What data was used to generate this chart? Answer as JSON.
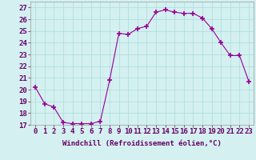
{
  "x": [
    0,
    1,
    2,
    3,
    4,
    5,
    6,
    7,
    8,
    9,
    10,
    11,
    12,
    13,
    14,
    15,
    16,
    17,
    18,
    19,
    20,
    21,
    22,
    23
  ],
  "y": [
    20.2,
    18.8,
    18.5,
    17.2,
    17.1,
    17.1,
    17.1,
    17.3,
    20.8,
    24.8,
    24.7,
    25.2,
    25.4,
    26.6,
    26.8,
    26.6,
    26.5,
    26.5,
    26.1,
    25.2,
    24.0,
    22.9,
    22.9,
    20.7
  ],
  "line_color": "#990099",
  "marker": "+",
  "marker_size": 4,
  "bg_color": "#d4f0f0",
  "grid_color": "#aadddd",
  "xlabel": "Windchill (Refroidissement éolien,°C)",
  "ylabel_ticks": [
    17,
    18,
    19,
    20,
    21,
    22,
    23,
    24,
    25,
    26,
    27
  ],
  "xlim": [
    -0.5,
    23.5
  ],
  "ylim": [
    17,
    27.5
  ],
  "xlabel_fontsize": 6.5,
  "tick_fontsize": 6.5
}
